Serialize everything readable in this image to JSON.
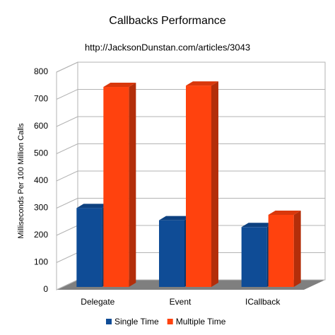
{
  "chart_data": {
    "type": "bar",
    "title": "Callbacks Performance",
    "subtitle": "http://JacksonDunstan.com/articles/3043",
    "y_label": "Milliseconds Per 100 Million Calls",
    "categories": [
      "Delegate",
      "Event",
      "ICallback"
    ],
    "series": [
      {
        "name": "Single Time",
        "color": "#0f4c96",
        "values": [
          290,
          245,
          220
        ]
      },
      {
        "name": "Multiple Time",
        "color": "#ff420e",
        "values": [
          735,
          740,
          265
        ]
      }
    ],
    "ylim": [
      0,
      800
    ],
    "yticks": [
      0,
      100,
      200,
      300,
      400,
      500,
      600,
      700,
      800
    ],
    "grid": true
  }
}
